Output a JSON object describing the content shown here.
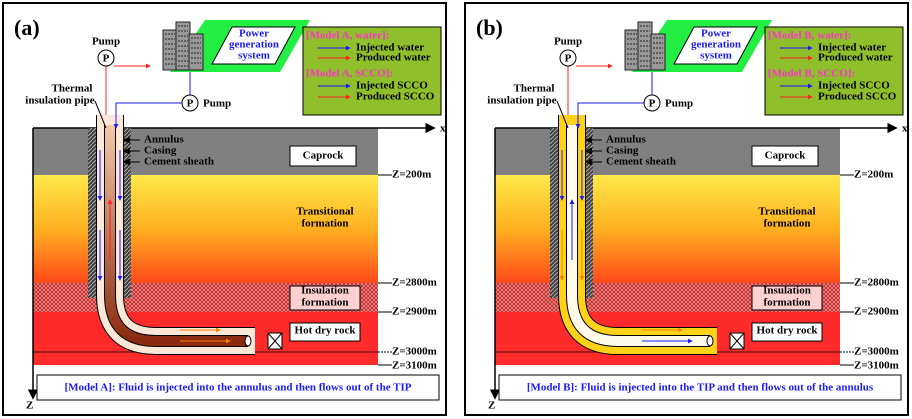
{
  "panels": [
    {
      "label": "(a)",
      "pump_top": "Pump",
      "pump_top_symbol": "P",
      "pump_right": "Pump",
      "pump_right_symbol": "P",
      "power_station": [
        "Power",
        "generation",
        "system"
      ],
      "legend": {
        "water_title": "[Model A, water]:",
        "water_items": [
          "Injected water",
          "Produced water"
        ],
        "scco_title": "[Model A, SCCO]:",
        "scco_items": [
          "Injected SCCO",
          "Produced SCCO"
        ]
      },
      "pipe_label": [
        "Thermal",
        "insulation pipe"
      ],
      "well_labels": [
        "Annulus",
        "Casing",
        "Cement sheath"
      ],
      "layers": [
        {
          "name": [
            "Caprock"
          ],
          "depth": "Z=200m"
        },
        {
          "name": [
            "Transitional",
            "formation"
          ],
          "depth": "Z=2800m"
        },
        {
          "name": [
            "Insulation",
            "formation"
          ],
          "depth": "Z=2900m"
        },
        {
          "name": [
            "Hot dry rock"
          ],
          "depth": "Z=3000m"
        }
      ],
      "bottom_depth": "Z=3100m",
      "x_axis": "x",
      "z_axis": "Z",
      "caption": "[Model A]: Fluid is injected into the annulus and then flows out of the TIP"
    },
    {
      "label": "(b)",
      "pump_top": "Pump",
      "pump_top_symbol": "P",
      "pump_right": "Pump",
      "pump_right_symbol": "P",
      "power_station": [
        "Power",
        "generation",
        "system"
      ],
      "legend": {
        "water_title": "[Model B, water]:",
        "water_items": [
          "Injected water",
          "Produced water"
        ],
        "scco_title": "[Model B, SCCO]:",
        "scco_items": [
          "Injected SCCO",
          "Produced SCCO"
        ]
      },
      "pipe_label": [
        "Thermal",
        "insulation pipe"
      ],
      "well_labels": [
        "Annulus",
        "Casing",
        "Cement sheath"
      ],
      "layers": [
        {
          "name": [
            "Caprock"
          ],
          "depth": "Z=200m"
        },
        {
          "name": [
            "Transitional",
            "formation"
          ],
          "depth": "Z=2800m"
        },
        {
          "name": [
            "Insulation",
            "formation"
          ],
          "depth": "Z=2900m"
        },
        {
          "name": [
            "Hot dry rock"
          ],
          "depth": "Z=3000m"
        }
      ],
      "bottom_depth": "Z=3100m",
      "x_axis": "x",
      "z_axis": "Z",
      "caption": "[Model B]: Fluid is injected into the TIP and then flows out of the annulus"
    }
  ]
}
